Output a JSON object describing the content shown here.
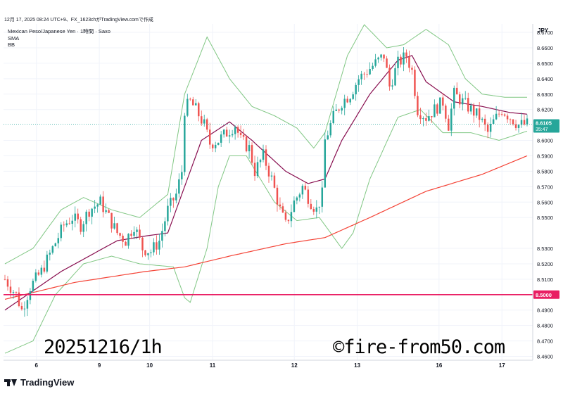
{
  "header": {
    "caption": "12月 17, 2025 08:24 UTC+9、FX_1623chがTradingView.comで作成"
  },
  "legend": {
    "symbol": "Mexican Peso/Japanese Yen · 1時間 · Saxo",
    "ind1": "SMA",
    "ind2": "BB"
  },
  "axis_unit": "JPY",
  "price_marker": {
    "price": "8.6105",
    "countdown": "35:47",
    "color": "#26a69a"
  },
  "level_marker": {
    "price": "8.5000",
    "color": "#e91e63"
  },
  "watermark": {
    "left": "20251216/1h",
    "right": "©fire-from50.com"
  },
  "brand": {
    "name": "TradingView"
  },
  "colors": {
    "up": "#26a69a",
    "down": "#ef5350",
    "bb": "#81c784",
    "sma_short": "#880e4f",
    "sma_long": "#f44336",
    "hline": "#e91e63",
    "grid": "#f0f3fa"
  },
  "chart_data": {
    "type": "candlestick",
    "ylim": [
      8.46,
      8.68
    ],
    "y_ticks": [
      "8.6700",
      "8.6600",
      "8.6500",
      "8.6400",
      "8.6300",
      "8.6200",
      "8.6000",
      "8.5900",
      "8.5800",
      "8.5700",
      "8.5600",
      "8.5500",
      "8.5300",
      "8.5200",
      "8.5100",
      "8.4900",
      "8.4800",
      "8.4700",
      "8.4600"
    ],
    "x_labels": [
      {
        "label": "6",
        "day": 6
      },
      {
        "label": "9",
        "day": 9
      },
      {
        "label": "10",
        "day": 10
      },
      {
        "label": "11",
        "day": 11
      },
      {
        "label": "12",
        "day": 12
      },
      {
        "label": "13",
        "day": 13
      },
      {
        "label": "16",
        "day": 16
      },
      {
        "label": "17",
        "day": 17
      }
    ],
    "hline": 8.5,
    "last_price": 8.6105,
    "close_path": [
      [
        0,
        8.51
      ],
      [
        4,
        8.5
      ],
      [
        6,
        8.49
      ],
      [
        9,
        8.505
      ],
      [
        13,
        8.515
      ],
      [
        17,
        8.53
      ],
      [
        21,
        8.545
      ],
      [
        24,
        8.55
      ],
      [
        27,
        8.545
      ],
      [
        30,
        8.555
      ],
      [
        34,
        8.56
      ],
      [
        37,
        8.55
      ],
      [
        40,
        8.54
      ],
      [
        43,
        8.535
      ],
      [
        46,
        8.545
      ],
      [
        49,
        8.53
      ],
      [
        52,
        8.528
      ],
      [
        55,
        8.535
      ],
      [
        58,
        8.555
      ],
      [
        61,
        8.565
      ],
      [
        63,
        8.58
      ],
      [
        64,
        8.62
      ],
      [
        66,
        8.625
      ],
      [
        68,
        8.62
      ],
      [
        71,
        8.61
      ],
      [
        73,
        8.598
      ],
      [
        76,
        8.6
      ],
      [
        79,
        8.605
      ],
      [
        82,
        8.61
      ],
      [
        84,
        8.6
      ],
      [
        87,
        8.595
      ],
      [
        89,
        8.58
      ],
      [
        92,
        8.59
      ],
      [
        95,
        8.575
      ],
      [
        98,
        8.555
      ],
      [
        100,
        8.545
      ],
      [
        103,
        8.56
      ],
      [
        106,
        8.57
      ],
      [
        109,
        8.56
      ],
      [
        111,
        8.555
      ],
      [
        113,
        8.565
      ],
      [
        114,
        8.6
      ],
      [
        117,
        8.615
      ],
      [
        120,
        8.625
      ],
      [
        123,
        8.63
      ],
      [
        126,
        8.64
      ],
      [
        129,
        8.645
      ],
      [
        132,
        8.65
      ],
      [
        135,
        8.655
      ],
      [
        137,
        8.635
      ],
      [
        140,
        8.65
      ],
      [
        143,
        8.655
      ],
      [
        145,
        8.645
      ],
      [
        147,
        8.62
      ],
      [
        150,
        8.615
      ],
      [
        153,
        8.62
      ],
      [
        156,
        8.625
      ],
      [
        158,
        8.61
      ],
      [
        160,
        8.63
      ],
      [
        163,
        8.625
      ],
      [
        166,
        8.62
      ],
      [
        169,
        8.615
      ],
      [
        172,
        8.605
      ],
      [
        174,
        8.612
      ],
      [
        177,
        8.62
      ],
      [
        180,
        8.615
      ],
      [
        183,
        8.61
      ],
      [
        186,
        8.6105
      ]
    ],
    "sma_short": [
      [
        0,
        8.49
      ],
      [
        20,
        8.515
      ],
      [
        40,
        8.535
      ],
      [
        50,
        8.538
      ],
      [
        58,
        8.54
      ],
      [
        64,
        8.57
      ],
      [
        70,
        8.6
      ],
      [
        80,
        8.612
      ],
      [
        88,
        8.6
      ],
      [
        100,
        8.58
      ],
      [
        108,
        8.572
      ],
      [
        114,
        8.575
      ],
      [
        120,
        8.6
      ],
      [
        130,
        8.63
      ],
      [
        140,
        8.652
      ],
      [
        145,
        8.655
      ],
      [
        150,
        8.638
      ],
      [
        160,
        8.625
      ],
      [
        170,
        8.622
      ],
      [
        180,
        8.618
      ],
      [
        186,
        8.617
      ]
    ],
    "sma_long": [
      [
        0,
        8.497
      ],
      [
        25,
        8.508
      ],
      [
        50,
        8.515
      ],
      [
        64,
        8.518
      ],
      [
        80,
        8.525
      ],
      [
        100,
        8.533
      ],
      [
        114,
        8.537
      ],
      [
        130,
        8.55
      ],
      [
        150,
        8.567
      ],
      [
        170,
        8.578
      ],
      [
        186,
        8.59
      ]
    ],
    "bb_upper": [
      [
        0,
        8.52
      ],
      [
        10,
        8.53
      ],
      [
        20,
        8.555
      ],
      [
        28,
        8.563
      ],
      [
        38,
        8.555
      ],
      [
        48,
        8.55
      ],
      [
        58,
        8.565
      ],
      [
        64,
        8.63
      ],
      [
        72,
        8.667
      ],
      [
        80,
        8.64
      ],
      [
        88,
        8.622
      ],
      [
        96,
        8.616
      ],
      [
        104,
        8.608
      ],
      [
        110,
        8.595
      ],
      [
        114,
        8.605
      ],
      [
        122,
        8.655
      ],
      [
        128,
        8.675
      ],
      [
        136,
        8.66
      ],
      [
        142,
        8.662
      ],
      [
        150,
        8.672
      ],
      [
        158,
        8.662
      ],
      [
        164,
        8.64
      ],
      [
        170,
        8.63
      ],
      [
        178,
        8.628
      ],
      [
        186,
        8.628
      ]
    ],
    "bb_lower": [
      [
        0,
        8.462
      ],
      [
        10,
        8.47
      ],
      [
        18,
        8.5
      ],
      [
        28,
        8.52
      ],
      [
        38,
        8.525
      ],
      [
        48,
        8.52
      ],
      [
        60,
        8.518
      ],
      [
        64,
        8.498
      ],
      [
        66,
        8.495
      ],
      [
        72,
        8.53
      ],
      [
        76,
        8.57
      ],
      [
        80,
        8.59
      ],
      [
        86,
        8.59
      ],
      [
        96,
        8.56
      ],
      [
        104,
        8.548
      ],
      [
        112,
        8.55
      ],
      [
        116,
        8.54
      ],
      [
        120,
        8.53
      ],
      [
        124,
        8.54
      ],
      [
        130,
        8.575
      ],
      [
        140,
        8.615
      ],
      [
        148,
        8.62
      ],
      [
        156,
        8.605
      ],
      [
        166,
        8.605
      ],
      [
        176,
        8.6
      ],
      [
        186,
        8.606
      ]
    ]
  }
}
